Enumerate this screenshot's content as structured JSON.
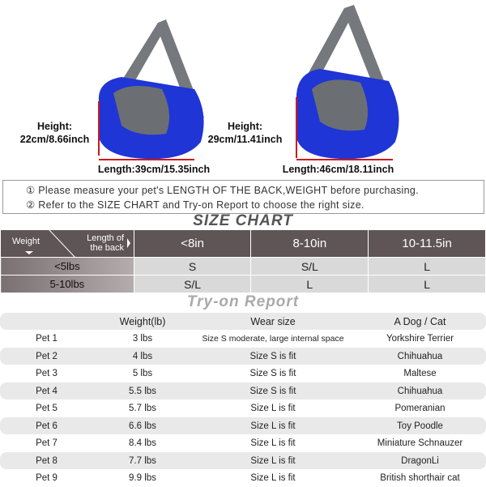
{
  "products": [
    {
      "height_label": "Height:",
      "height_value": "22cm/8.66inch",
      "length": "Length:39cm/15.35inch"
    },
    {
      "height_label": "Height:",
      "height_value": "29cm/11.41inch",
      "length": "Length:46cm/18.11inch"
    }
  ],
  "colors": {
    "bag_blue": "#1f35d6",
    "bag_gray": "#707478",
    "header_dark": "#5f5556",
    "measure_red": "#d01818"
  },
  "notes": [
    "① Please measure your pet's LENGTH OF THE BACK,WEIGHT before purchasing.",
    "② Refer to the SIZE CHART and Try-on Report to choose the right size."
  ],
  "size_chart": {
    "title": "SIZE CHART",
    "corner_weight": "Weight",
    "corner_length": "Length of the back",
    "columns": [
      "<8in",
      "8-10in",
      "10-11.5in"
    ],
    "rows": [
      {
        "weight": "<5lbs",
        "sizes": [
          "S",
          "S/L",
          "L"
        ]
      },
      {
        "weight": "5-10lbs",
        "sizes": [
          "S/L",
          "L",
          "L"
        ]
      }
    ]
  },
  "try_on": {
    "title": "Try-on Report",
    "headers": [
      "",
      "Weight(lb)",
      "Wear size",
      "A Dog / Cat"
    ],
    "rows": [
      [
        "Pet 1",
        "3 lbs",
        "Size S moderate, large internal space",
        "Yorkshire Terrier"
      ],
      [
        "Pet 2",
        "4 lbs",
        "Size S is fit",
        "Chihuahua"
      ],
      [
        "Pet 3",
        "5 lbs",
        "Size S is fit",
        "Maltese"
      ],
      [
        "Pet 4",
        "5.5 lbs",
        "Size S is fit",
        "Chihuahua"
      ],
      [
        "Pet 5",
        "5.7 lbs",
        "Size L is fit",
        "Pomeranian"
      ],
      [
        "Pet 6",
        "6.6 lbs",
        "Size L is fit",
        "Toy Poodle"
      ],
      [
        "Pet 7",
        "8.4 lbs",
        "Size L is fit",
        "Miniature Schnauzer"
      ],
      [
        "Pet 8",
        "7.7 lbs",
        "Size L is fit",
        "DragonLi"
      ],
      [
        "Pet 9",
        "9.9 lbs",
        "Size L is fit",
        "British shorthair cat"
      ]
    ]
  }
}
